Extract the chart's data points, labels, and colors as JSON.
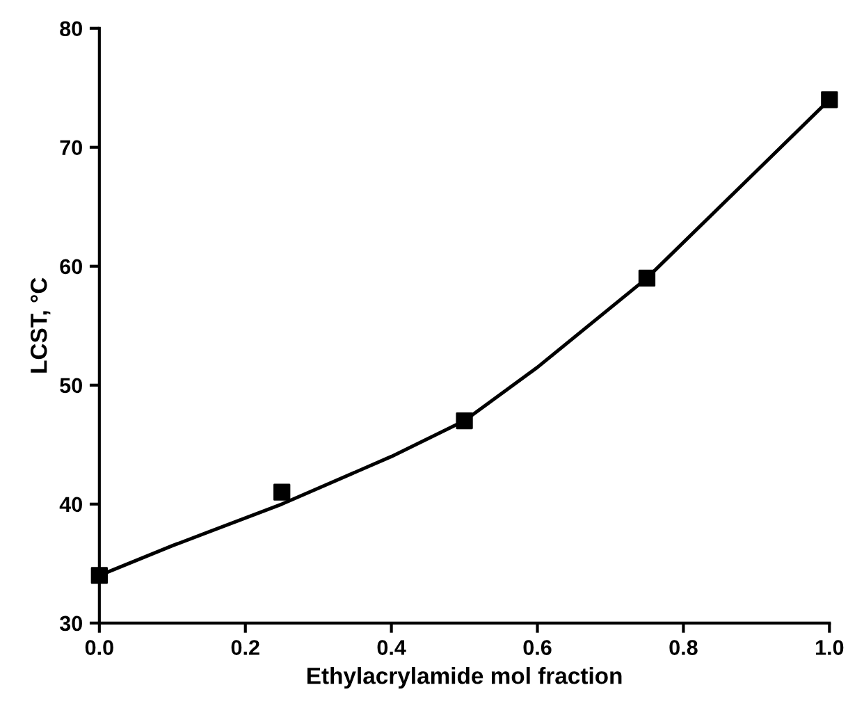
{
  "chart_data": {
    "type": "scatter",
    "xlabel": "Ethylacrylamide mol fraction",
    "ylabel": "LCST, °C",
    "series": [
      {
        "color": "#000000",
        "marker": "square",
        "x": [
          0,
          0.25,
          0.5,
          0.75,
          1.0
        ],
        "values": [
          34,
          41,
          47,
          59,
          74
        ]
      },
      {
        "type": "line",
        "color": "#000000",
        "marker": "none",
        "line_style": "solid",
        "x": [
          0,
          0.1,
          0.25,
          0.4,
          0.5,
          0.6,
          0.75,
          0.9,
          1.0
        ],
        "values": [
          34,
          36.5,
          40,
          44,
          47,
          51.5,
          59,
          68,
          74
        ]
      }
    ],
    "xlim": [
      0,
      1.0
    ],
    "ylim": [
      30,
      80
    ],
    "xticks": [
      {
        "value": 0,
        "label": "0.0"
      },
      0.2,
      0.4,
      0.6,
      0.8,
      {
        "value": 1.0,
        "label": "1.0"
      }
    ],
    "yticks": [
      30,
      40,
      50,
      60,
      70,
      80
    ],
    "grid": false,
    "legend": false
  }
}
